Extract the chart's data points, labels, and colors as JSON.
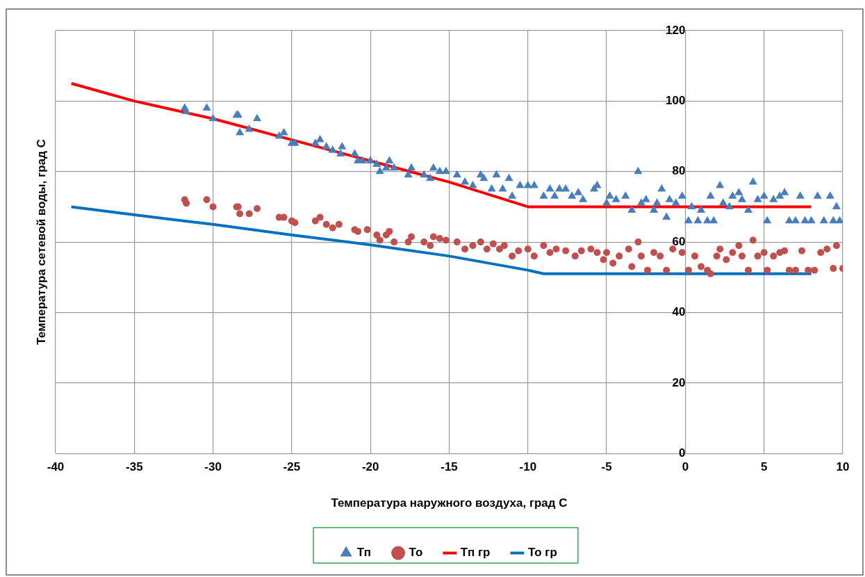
{
  "chart_data": {
    "type": "scatter",
    "xlabel": "Температура наружного воздуха, град С",
    "ylabel": "Температура сетевой воды, град С",
    "xlim": [
      -40,
      10
    ],
    "xticks": [
      -40,
      -35,
      -30,
      -25,
      -20,
      -15,
      -10,
      -5,
      0,
      5,
      10
    ],
    "ylim": [
      0,
      120
    ],
    "yticks": [
      0,
      20,
      40,
      60,
      80,
      100,
      120
    ],
    "grid": true,
    "legend": "bottom",
    "series": [
      {
        "name": "Тп",
        "type": "scatter",
        "marker": "triangle",
        "color": "#4a7ebb",
        "x": [
          -31.8,
          -31.7,
          -30.4,
          -30,
          -28.5,
          -28.4,
          -28.3,
          -27.7,
          -27.2,
          -25.8,
          -25.5,
          -25,
          -24.8,
          -23.5,
          -23.2,
          -22.8,
          -22.4,
          -21.9,
          -21.8,
          -21,
          -20.8,
          -20.5,
          -20,
          -19.6,
          -19.4,
          -19,
          -18.8,
          -18.5,
          -17.6,
          -17.4,
          -16.6,
          -16.2,
          -16,
          -15.6,
          -15.2,
          -14.5,
          -14,
          -13.5,
          -13,
          -12.8,
          -12.3,
          -12,
          -11.6,
          -11.2,
          -11,
          -10.5,
          -10,
          -9.6,
          -9,
          -8.6,
          -8.3,
          -8,
          -7.6,
          -7.2,
          -6.8,
          -6.5,
          -5.8,
          -5.6,
          -5,
          -4.8,
          -4.4,
          -3.8,
          -3.4,
          -3,
          -2.8,
          -2.5,
          -2,
          -1.8,
          -1.5,
          -1.2,
          -1,
          -0.6,
          -0.2,
          0.2,
          0.4,
          0.8,
          1,
          1.4,
          1.6,
          1.8,
          2.2,
          2.4,
          2.8,
          3,
          3.4,
          3.6,
          4,
          4.3,
          4.6,
          5,
          5.2,
          5.6,
          6,
          6.3,
          6.6,
          7,
          7.3,
          7.6,
          8,
          8.4,
          8.8,
          9.2,
          9.4,
          9.6,
          9.8
        ],
        "values": [
          98,
          97,
          98,
          95,
          96,
          96,
          91,
          92,
          95,
          90,
          91,
          88,
          88,
          88,
          89,
          87,
          86,
          85,
          87,
          85,
          83,
          83,
          83,
          82,
          80,
          81,
          83,
          81,
          79,
          81,
          79,
          78,
          81,
          80,
          80,
          79,
          77,
          76,
          79,
          78,
          75,
          79,
          75,
          78,
          73,
          76,
          76,
          76,
          73,
          75,
          73,
          75,
          75,
          73,
          74,
          72,
          75,
          76,
          71,
          73,
          72,
          73,
          69,
          80,
          71,
          72,
          69,
          71,
          75,
          67,
          72,
          71,
          73,
          66,
          70,
          66,
          69,
          66,
          73,
          66,
          76,
          71,
          70,
          73,
          74,
          72,
          69,
          77,
          72,
          73,
          66,
          72,
          73,
          74,
          66,
          66,
          73,
          66,
          66,
          73,
          66,
          73,
          66,
          70,
          66
        ]
      },
      {
        "name": "То",
        "type": "scatter",
        "marker": "circle",
        "color": "#c0504d",
        "x": [
          -31.8,
          -31.7,
          -30.4,
          -30,
          -28.5,
          -28.4,
          -28.3,
          -27.7,
          -27.2,
          -25.8,
          -25.5,
          -25,
          -24.8,
          -23.5,
          -23.2,
          -22.8,
          -22.4,
          -22,
          -21,
          -20.8,
          -20.2,
          -19.6,
          -19.4,
          -19,
          -18.8,
          -18.5,
          -17.6,
          -17.4,
          -16.6,
          -16.2,
          -16,
          -15.6,
          -15.2,
          -14.5,
          -14,
          -13.5,
          -13,
          -12.6,
          -12.2,
          -11.8,
          -11.5,
          -11,
          -10.6,
          -10,
          -9.6,
          -9,
          -8.6,
          -8.2,
          -7.6,
          -7,
          -6.6,
          -6,
          -5.6,
          -5.2,
          -5,
          -4.6,
          -4.2,
          -3.6,
          -3.4,
          -3,
          -2.8,
          -2.4,
          -2,
          -1.6,
          -1.2,
          -0.8,
          -0.2,
          0.2,
          0.6,
          1,
          1.4,
          1.6,
          2,
          2.2,
          2.6,
          3,
          3.4,
          3.6,
          4,
          4.3,
          4.6,
          5,
          5.2,
          5.6,
          6,
          6.3,
          6.6,
          7,
          7.4,
          7.8,
          8.2,
          8.6,
          9,
          9.4,
          9.6,
          10
        ],
        "values": [
          72,
          71,
          72,
          70,
          70,
          70,
          68,
          68,
          69.5,
          67,
          67,
          66,
          65.5,
          66,
          67,
          65,
          64,
          65,
          63.5,
          63,
          63.5,
          62,
          60.5,
          62,
          63,
          60,
          60,
          61.5,
          60,
          59,
          61.5,
          61,
          60.5,
          60,
          58,
          59,
          60,
          58,
          59.5,
          58,
          59,
          56,
          57.5,
          58,
          56,
          59,
          57,
          58,
          57.5,
          56,
          57.5,
          58,
          57,
          55,
          57,
          54,
          56,
          58,
          53,
          60,
          56,
          52,
          57,
          56,
          52,
          58,
          57,
          52,
          56,
          53,
          52,
          51,
          56,
          58,
          55,
          57,
          59,
          56,
          52,
          60.5,
          56,
          57,
          52,
          56,
          57,
          57.5,
          52,
          52,
          57.5,
          52,
          52,
          57,
          58,
          52.5,
          59,
          52.5
        ]
      },
      {
        "name": "Тп гр",
        "type": "line",
        "marker": "none",
        "line_style": "solid",
        "color": "#ff0000",
        "x": [
          -39,
          -35,
          -30,
          -25,
          -20,
          -15,
          -10,
          8
        ],
        "values": [
          105,
          100,
          95,
          89,
          83,
          77,
          70,
          70
        ]
      },
      {
        "name": "То гр",
        "type": "line",
        "marker": "none",
        "line_style": "solid",
        "color": "#0070c0",
        "x": [
          -39,
          -35,
          -30,
          -25,
          -20,
          -15,
          -10,
          -9,
          8
        ],
        "values": [
          70,
          67.7,
          65,
          62,
          59.2,
          56,
          52,
          51,
          51
        ]
      }
    ]
  }
}
